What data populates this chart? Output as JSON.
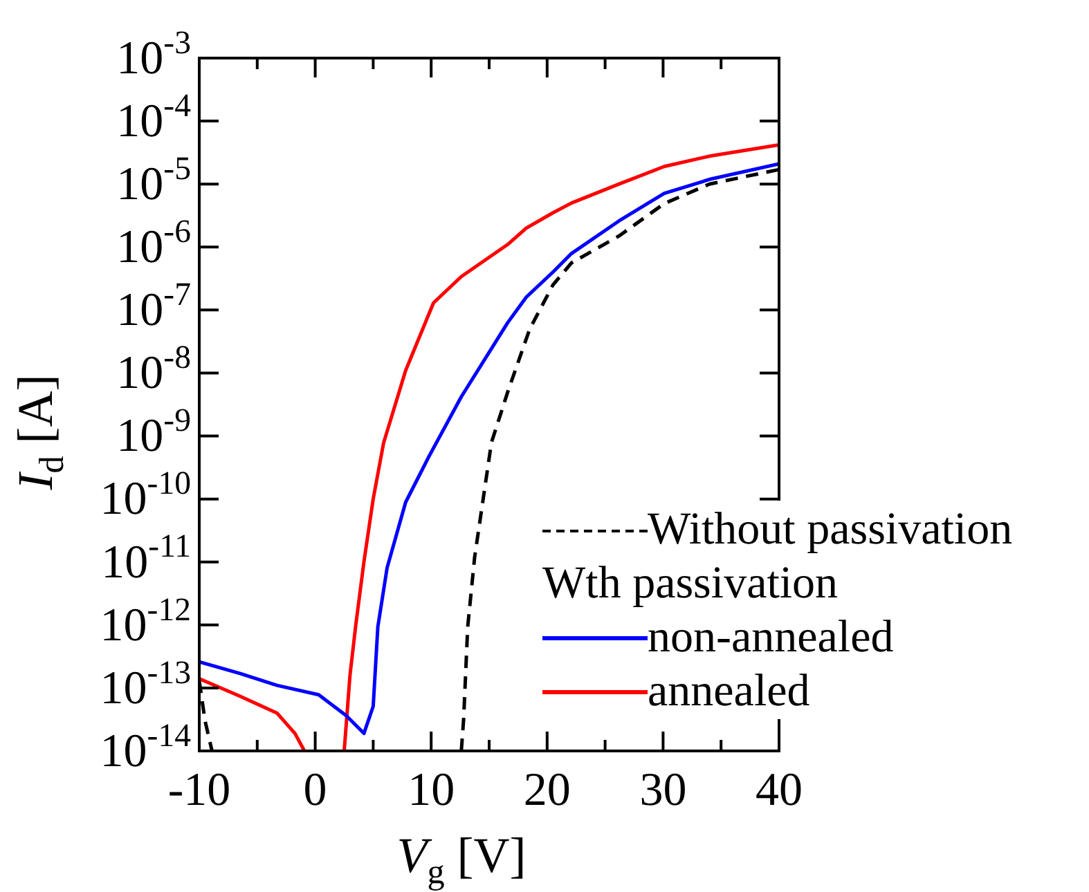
{
  "chart_data": {
    "type": "line",
    "xlabel": "V$_{g}$ [V]",
    "ylabel": "I$_{d}$ [A]",
    "legend_title": "Wth passivation",
    "legend": "bottom right",
    "log": "y",
    "marker": "none",
    "xlim": [
      -10,
      40
    ],
    "xticks": [
      -10,
      {
        "value": -5,
        "label": null
      },
      0,
      {
        "value": 5,
        "label": null
      },
      10,
      {
        "value": 15,
        "label": null
      },
      20,
      {
        "value": 25,
        "label": null
      },
      30,
      {
        "value": 35,
        "label": null
      },
      40
    ],
    "ylim": [
      1e-14,
      0.001
    ],
    "yticks": [
      {
        "value": 0.001,
        "label": "10$^{-3}$"
      },
      {
        "value": 0.0001,
        "label": "10$^{-4}$"
      },
      {
        "value": 1e-05,
        "label": "10$^{-5}$"
      },
      {
        "value": 1e-06,
        "label": "10$^{-6}$"
      },
      {
        "value": 1e-07,
        "label": "10$^{-7}$"
      },
      {
        "value": 1e-08,
        "label": "10$^{-8}$"
      },
      {
        "value": 1e-09,
        "label": "10$^{-9}$"
      },
      {
        "value": 1e-10,
        "label": "10$^{-10}$"
      },
      {
        "value": 1e-11,
        "label": "10$^{-11}$"
      },
      {
        "value": 1e-12,
        "label": "10$^{-12}$"
      },
      {
        "value": 1e-13,
        "label": "10$^{-13}$"
      },
      {
        "value": 1e-14,
        "label": "10$^{-14}$"
      }
    ],
    "series": [
      {
        "name": "Without passivation",
        "color": "#000000",
        "line_style": "dashed",
        "x": [
          -10,
          -9.5,
          -8.9,
          2,
          12.6,
          12.8,
          13.15,
          13.75,
          14.6,
          15.2,
          16.6,
          18.5,
          20.5,
          22.1,
          26.2,
          30.1,
          34,
          40
        ],
        "values": [
          1.3e-13,
          3e-14,
          1e-14,
          null,
          1e-14,
          3.2e-14,
          9.3e-13,
          1.2e-11,
          1.4e-10,
          7.9e-10,
          5e-09,
          5e-08,
          2.5e-07,
          5.6e-07,
          1.5e-06,
          4.9e-06,
          1e-05,
          1.7e-05
        ]
      },
      {
        "name": "non-annealed",
        "color": "#0000ff",
        "line_style": "solid",
        "x": [
          -10,
          -6.5,
          -3.3,
          0.3,
          2.7,
          4.2,
          5.0,
          5.4,
          6.2,
          7.8,
          9.8,
          12.6,
          16.6,
          18.2,
          20.5,
          22.1,
          26.2,
          30.1,
          34.1,
          40
        ],
        "values": [
          2.6e-13,
          1.7e-13,
          1.1e-13,
          7.8e-14,
          3.6e-14,
          1.9e-14,
          5.1e-14,
          9.3e-13,
          8.1e-12,
          8.9e-11,
          4.7e-10,
          4.2e-09,
          6.3e-08,
          1.6e-07,
          4e-07,
          7.9e-07,
          2.6e-06,
          7.1e-06,
          1.2e-05,
          2.1e-05
        ]
      },
      {
        "name": "annealed",
        "color": "#ff0000",
        "line_style": "solid",
        "x": [
          -10,
          -6.5,
          -3.3,
          -1.75,
          -0.93,
          1,
          2.5,
          3.0,
          3.5,
          4.2,
          5.0,
          5.9,
          7.8,
          10.2,
          12.6,
          16.6,
          18.2,
          20.5,
          22.1,
          26.2,
          30.1,
          34.1,
          40
        ],
        "values": [
          1.4e-13,
          7.4e-14,
          4e-14,
          1.9e-14,
          1e-14,
          null,
          1e-14,
          1.6e-13,
          1e-12,
          1e-11,
          1e-10,
          7.8e-10,
          1.1e-08,
          1.3e-07,
          3.4e-07,
          1.1e-06,
          2e-06,
          3.5e-06,
          5e-06,
          1e-05,
          1.9e-05,
          2.8e-05,
          4.2e-05
        ]
      }
    ]
  }
}
